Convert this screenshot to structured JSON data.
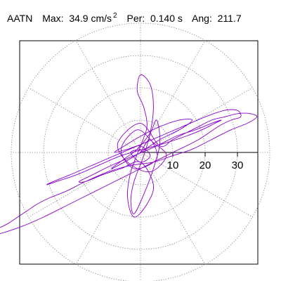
{
  "header": {
    "station": "AATN",
    "max_label": "Max:",
    "max_value": "34.9 cm/s",
    "max_exp": "2",
    "per_label": "Per:",
    "per_value": "0.140 s",
    "ang_label": "Ang:",
    "ang_value": "211.7"
  },
  "chart_data": {
    "type": "line",
    "subtype": "polar-particle-motion",
    "title": "",
    "r_ticks": [
      10,
      20,
      30
    ],
    "r_tick_labels": [
      "10",
      "20",
      "30"
    ],
    "rlim": [
      0,
      40
    ],
    "grid": "dotted rings and spokes every 30 degrees",
    "marker_color": "#20a080",
    "trace_color": "#8a00cc",
    "series": [
      {
        "values_xy": [
          [
            0,
            0
          ],
          [
            3,
            4
          ],
          [
            5,
            -2
          ],
          [
            -2,
            -5
          ],
          [
            -6,
            1
          ],
          [
            -1,
            7
          ],
          [
            4,
            3
          ],
          [
            8,
            -1
          ],
          [
            3,
            -6
          ],
          [
            -4,
            -3
          ],
          [
            -7,
            3
          ],
          [
            0,
            9
          ],
          [
            6,
            2
          ],
          [
            10,
            4
          ],
          [
            14,
            6
          ],
          [
            18,
            8
          ],
          [
            22,
            10
          ],
          [
            26,
            11
          ],
          [
            30,
            12
          ],
          [
            34,
            12
          ],
          [
            36,
            11
          ],
          [
            33,
            9
          ],
          [
            28,
            7
          ],
          [
            22,
            4
          ],
          [
            16,
            1
          ],
          [
            10,
            -1
          ],
          [
            4,
            -3
          ],
          [
            -3,
            -4
          ],
          [
            -10,
            -6
          ],
          [
            -17,
            -9
          ],
          [
            -23,
            -12
          ],
          [
            -28,
            -14
          ],
          [
            -32,
            -16
          ],
          [
            -35,
            -18
          ],
          [
            -38,
            -20
          ],
          [
            -41,
            -22
          ],
          [
            -44,
            -23.5
          ],
          [
            -46,
            -24.5
          ],
          [
            -48,
            -25.5
          ],
          [
            -49,
            -26.3
          ],
          [
            -47,
            -26
          ],
          [
            -43,
            -25
          ],
          [
            -37,
            -23
          ],
          [
            -30,
            -20
          ],
          [
            -22,
            -16
          ],
          [
            -14,
            -12
          ],
          [
            -6,
            -8
          ],
          [
            2,
            -4
          ],
          [
            10,
            0
          ],
          [
            18,
            4
          ],
          [
            24,
            8
          ],
          [
            28,
            10
          ],
          [
            31,
            11
          ],
          [
            30,
            13
          ],
          [
            26,
            13
          ],
          [
            20,
            11
          ],
          [
            13,
            8
          ],
          [
            6,
            5
          ],
          [
            -1,
            2
          ],
          [
            -8,
            -1
          ],
          [
            -15,
            -4
          ],
          [
            -22,
            -7
          ],
          [
            -27,
            -9
          ],
          [
            -29,
            -10
          ],
          [
            -26,
            -9
          ],
          [
            -20,
            -7
          ],
          [
            -13,
            -4
          ],
          [
            -6,
            -1
          ],
          [
            1,
            1
          ],
          [
            8,
            3
          ],
          [
            14,
            5
          ],
          [
            19,
            7
          ],
          [
            23,
            9
          ],
          [
            25,
            10
          ],
          [
            22,
            9
          ],
          [
            17,
            7
          ],
          [
            11,
            5
          ],
          [
            5,
            2
          ],
          [
            -2,
            -1
          ],
          [
            -9,
            -4
          ],
          [
            -15,
            -7
          ],
          [
            -19,
            -9
          ],
          [
            -17,
            -9
          ],
          [
            -12,
            -7
          ],
          [
            -6,
            -5
          ],
          [
            0,
            -3
          ],
          [
            4,
            -10
          ],
          [
            2,
            -16
          ],
          [
            -2,
            -20
          ],
          [
            -4,
            -14
          ],
          [
            -3,
            -6
          ],
          [
            0,
            2
          ],
          [
            2,
            8
          ],
          [
            1,
            14
          ],
          [
            -1,
            19
          ],
          [
            0,
            24
          ],
          [
            3,
            21
          ],
          [
            4,
            14
          ],
          [
            3,
            6
          ],
          [
            1,
            -1
          ],
          [
            -2,
            -9
          ],
          [
            -3,
            -15
          ],
          [
            -2,
            -19
          ],
          [
            1,
            -13
          ],
          [
            4,
            -5
          ],
          [
            6,
            3
          ],
          [
            5,
            10
          ],
          [
            3,
            6
          ],
          [
            -1,
            1
          ],
          [
            -5,
            -2
          ],
          [
            -9,
            -5
          ],
          [
            -5,
            -3
          ],
          [
            0,
            0
          ],
          [
            6,
            4
          ],
          [
            12,
            7
          ],
          [
            16,
            10
          ],
          [
            12,
            10
          ],
          [
            6,
            8
          ],
          [
            0,
            5
          ],
          [
            -5,
            2
          ],
          [
            -8,
            0
          ],
          [
            -4,
            1
          ],
          [
            0,
            2
          ],
          [
            3,
            -1
          ],
          [
            0,
            -3
          ],
          [
            -3,
            0
          ],
          [
            0,
            1
          ]
        ]
      }
    ]
  }
}
